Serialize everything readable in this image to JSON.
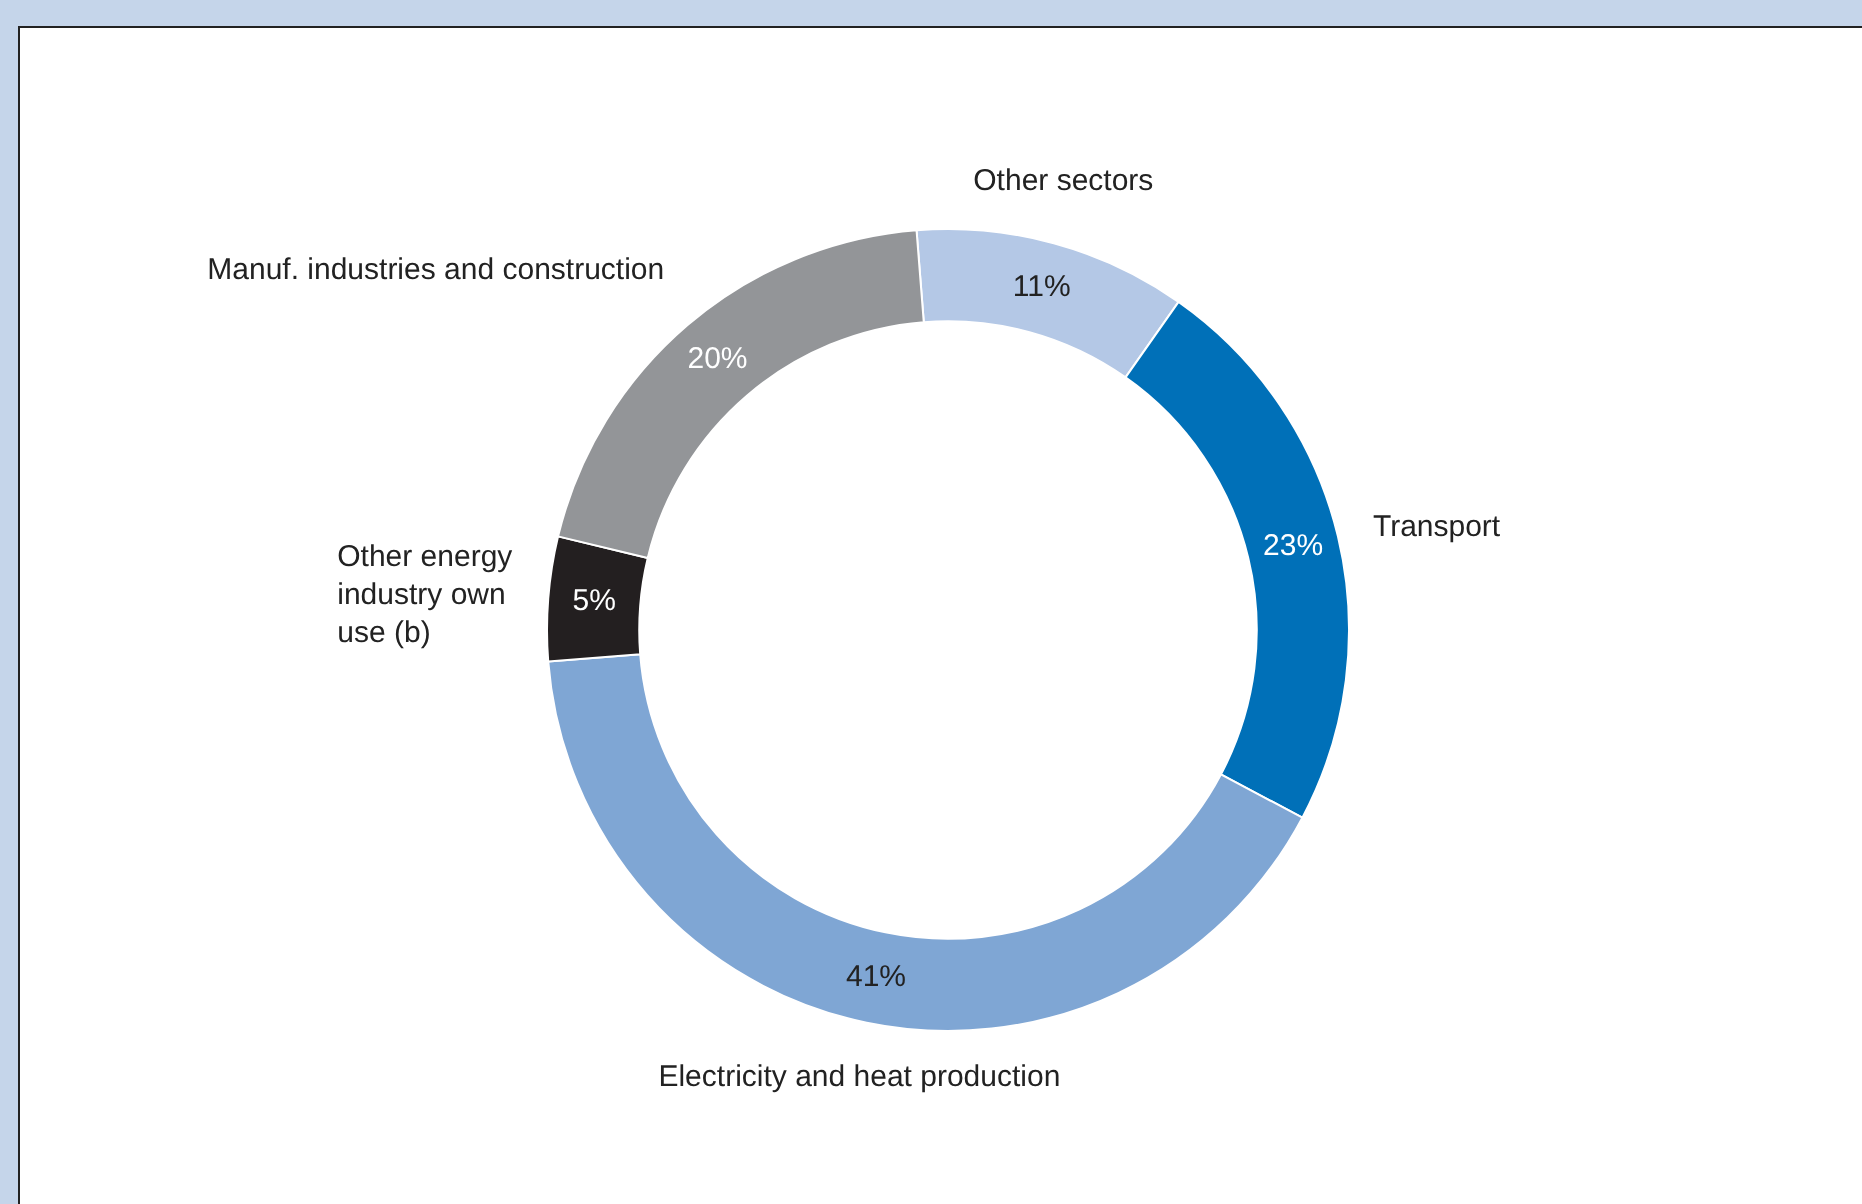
{
  "chart_data": {
    "type": "donut",
    "categories": [
      "Other sectors",
      "Transport",
      "Electricity and heat production",
      "Other energy industry own use (b)",
      "Manuf. industries and construction"
    ],
    "values": [
      11,
      23,
      41,
      5,
      20
    ],
    "value_labels": [
      "11%",
      "23%",
      "41%",
      "5%",
      "20%"
    ],
    "colors": [
      "#b4c8e6",
      "#0070b8",
      "#7fa6d4",
      "#231f20",
      "#939598"
    ],
    "legend": false
  }
}
